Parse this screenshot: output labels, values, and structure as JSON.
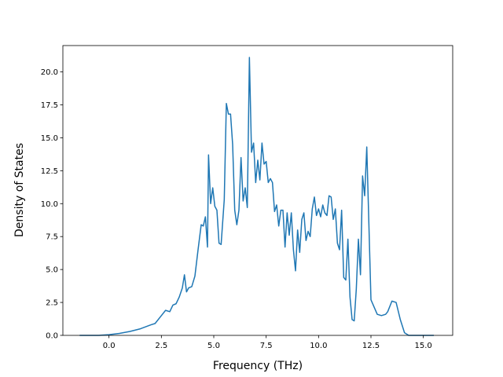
{
  "chart_data": {
    "type": "line",
    "title": "",
    "xlabel": "Frequency (THz)",
    "ylabel": "Density of States",
    "xlim": [
      -2.2,
      16.4
    ],
    "ylim": [
      0,
      22
    ],
    "xticks": [
      0.0,
      2.5,
      5.0,
      7.5,
      10.0,
      12.5,
      15.0
    ],
    "xtick_labels": [
      "0.0",
      "2.5",
      "5.0",
      "7.5",
      "10.0",
      "12.5",
      "15.0"
    ],
    "yticks": [
      0.0,
      2.5,
      5.0,
      7.5,
      10.0,
      12.5,
      15.0,
      17.5,
      20.0
    ],
    "ytick_labels": [
      "0.0",
      "2.5",
      "5.0",
      "7.5",
      "10.0",
      "12.5",
      "15.0",
      "17.5",
      "20.0"
    ],
    "grid": false,
    "legend": "none",
    "series_color": "#1f77b4",
    "x": [
      -1.4,
      -0.5,
      0.0,
      0.5,
      1.0,
      1.5,
      2.0,
      2.2,
      2.5,
      2.7,
      2.9,
      3.05,
      3.2,
      3.35,
      3.5,
      3.6,
      3.7,
      3.8,
      3.95,
      4.1,
      4.25,
      4.4,
      4.5,
      4.6,
      4.7,
      4.75,
      4.85,
      4.95,
      5.05,
      5.15,
      5.25,
      5.35,
      5.5,
      5.6,
      5.7,
      5.8,
      5.9,
      6.0,
      6.1,
      6.2,
      6.3,
      6.4,
      6.5,
      6.6,
      6.7,
      6.8,
      6.9,
      7.0,
      7.1,
      7.2,
      7.3,
      7.4,
      7.5,
      7.6,
      7.7,
      7.8,
      7.9,
      8.0,
      8.1,
      8.2,
      8.3,
      8.4,
      8.5,
      8.6,
      8.7,
      8.8,
      8.9,
      9.0,
      9.1,
      9.2,
      9.3,
      9.4,
      9.5,
      9.6,
      9.7,
      9.8,
      9.9,
      10.0,
      10.1,
      10.2,
      10.3,
      10.4,
      10.5,
      10.6,
      10.7,
      10.8,
      10.9,
      11.0,
      11.1,
      11.2,
      11.3,
      11.4,
      11.5,
      11.6,
      11.7,
      11.8,
      11.9,
      12.0,
      12.1,
      12.2,
      12.3,
      12.5,
      12.8,
      13.0,
      13.2,
      13.3,
      13.5,
      13.7,
      13.9,
      14.1,
      14.3,
      14.5,
      15.0,
      15.5
    ],
    "y": [
      0.0,
      0.0,
      0.05,
      0.15,
      0.3,
      0.5,
      0.8,
      0.9,
      1.5,
      1.9,
      1.8,
      2.3,
      2.4,
      2.9,
      3.6,
      4.6,
      3.3,
      3.6,
      3.7,
      4.5,
      6.5,
      8.4,
      8.3,
      9.0,
      6.7,
      13.7,
      10.0,
      11.2,
      9.8,
      9.5,
      7.0,
      6.9,
      10.3,
      17.6,
      16.8,
      16.8,
      14.5,
      9.5,
      8.4,
      9.5,
      13.5,
      10.2,
      11.2,
      9.7,
      21.1,
      13.9,
      14.6,
      11.6,
      13.3,
      11.8,
      14.6,
      13.0,
      13.2,
      11.6,
      11.9,
      11.6,
      9.4,
      9.9,
      8.3,
      9.5,
      9.5,
      6.7,
      9.3,
      7.6,
      9.3,
      6.5,
      4.9,
      8.0,
      6.3,
      8.8,
      9.3,
      7.2,
      7.9,
      7.5,
      9.6,
      10.5,
      9.1,
      9.6,
      9.0,
      9.9,
      9.3,
      9.1,
      10.6,
      10.5,
      8.8,
      9.6,
      7.0,
      6.5,
      9.5,
      4.4,
      4.2,
      7.3,
      2.9,
      1.2,
      1.1,
      3.5,
      7.3,
      4.6,
      12.1,
      10.6,
      14.3,
      2.7,
      1.6,
      1.5,
      1.6,
      1.8,
      2.6,
      2.5,
      1.2,
      0.2,
      0.0,
      0.0,
      0.0,
      0.0
    ]
  }
}
